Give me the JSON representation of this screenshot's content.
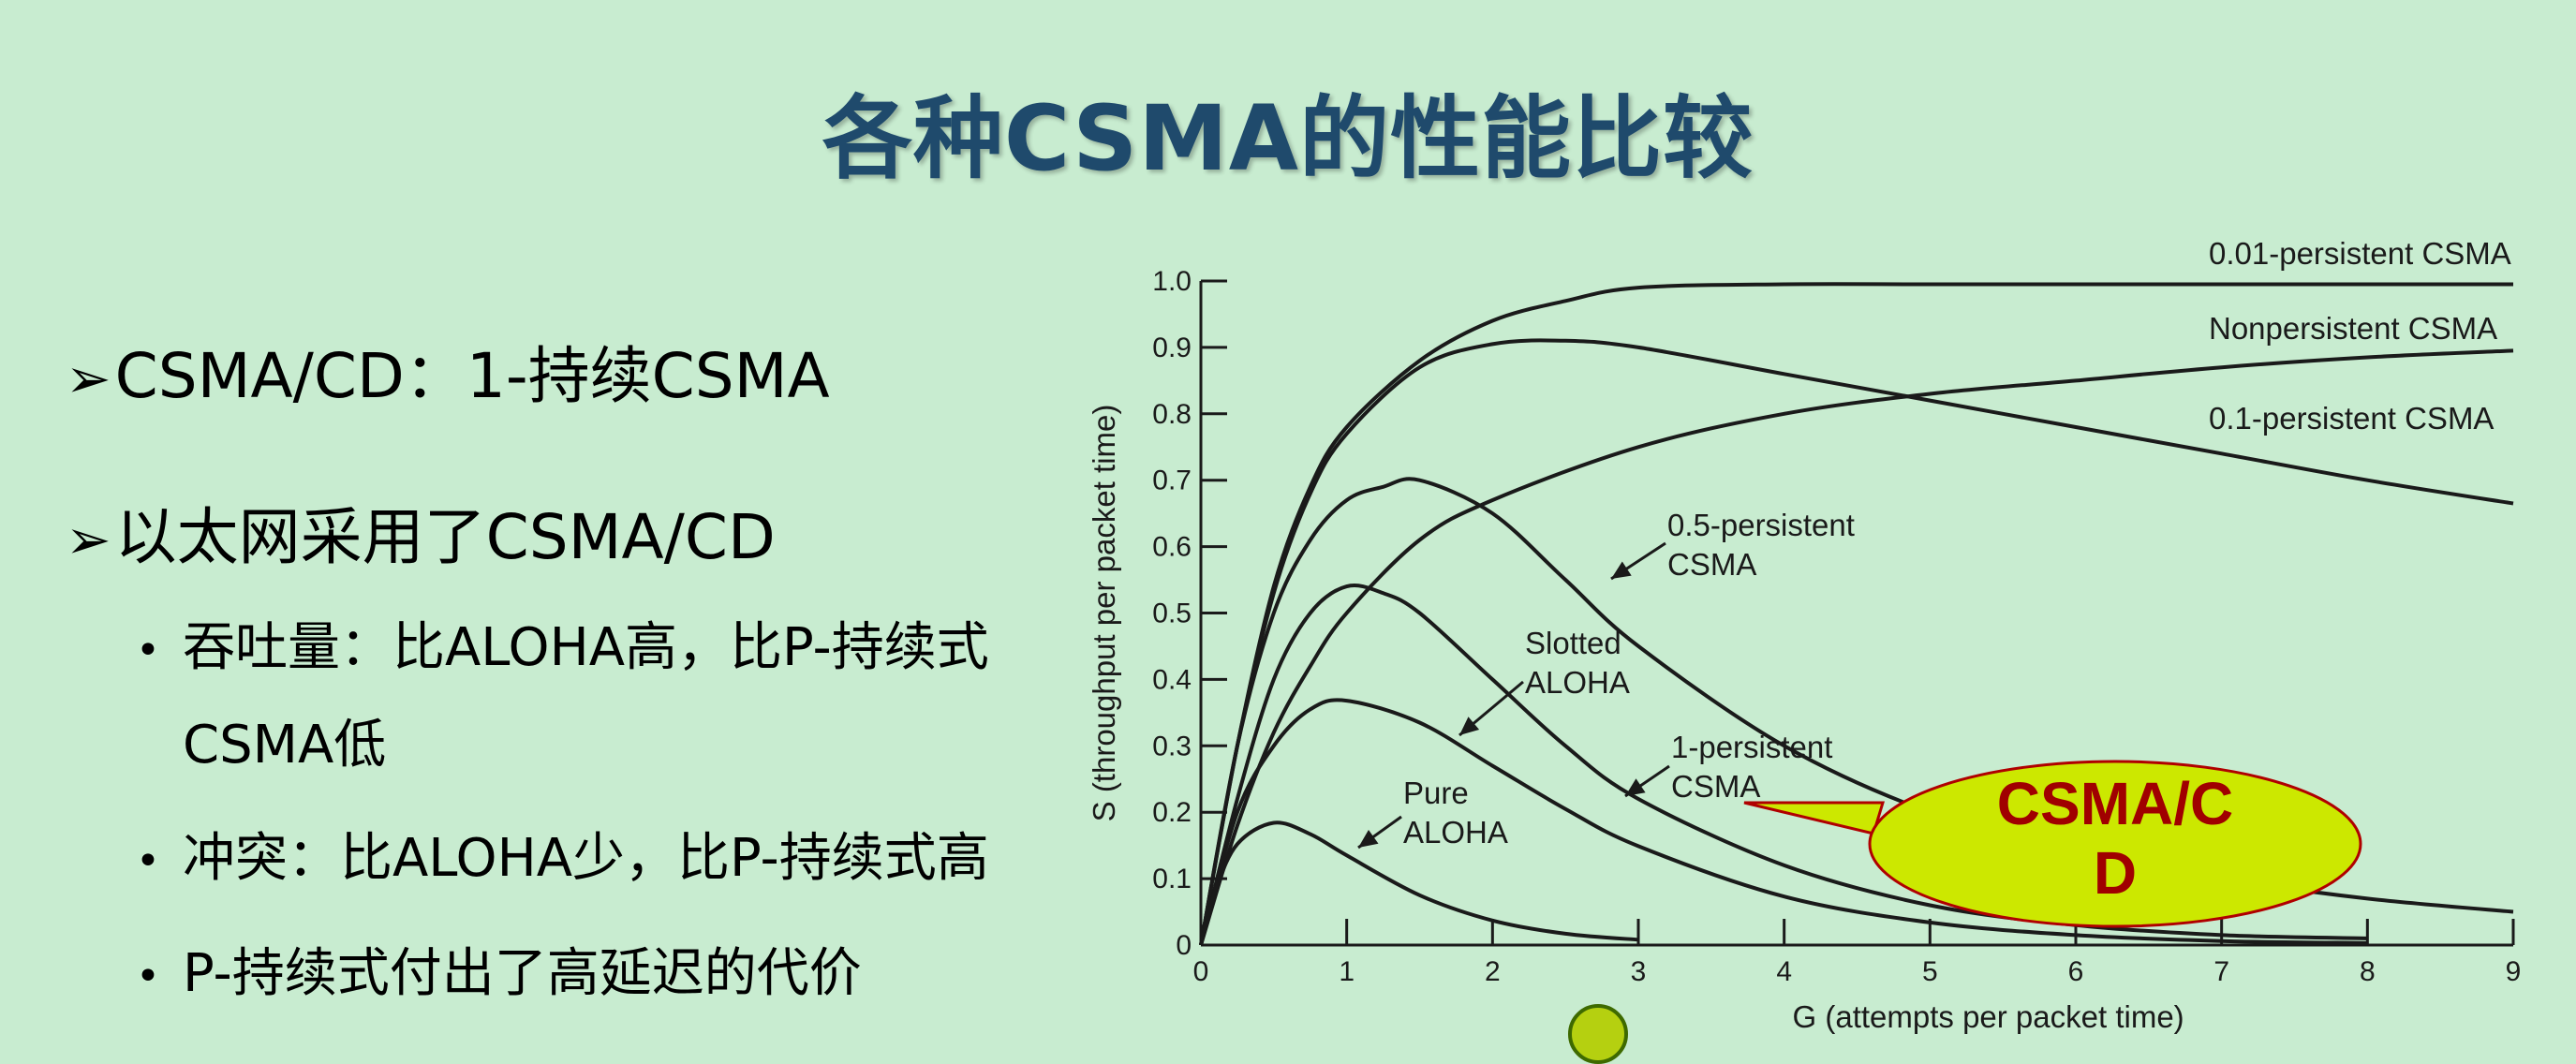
{
  "slide": {
    "title": "各种CSMA的性能比较",
    "bullets": [
      {
        "level": 1,
        "text": "CSMA/CD：1-持续CSMA"
      },
      {
        "level": 1,
        "text": "以太网采用了CSMA/CD"
      }
    ],
    "sub_bullets": [
      {
        "lines": [
          "吞吐量：比ALOHA高，比P-持续式",
          "CSMA低"
        ]
      },
      {
        "lines": [
          "冲突：比ALOHA少，比P-持续式高"
        ]
      },
      {
        "lines": [
          "P-持续式付出了高延迟的代价"
        ]
      }
    ],
    "callout": {
      "text_line1": "CSMA/C",
      "text_line2": "D",
      "fill": "#cce800",
      "text_color": "#a00000"
    }
  },
  "chart_data": {
    "type": "line",
    "xlabel": "G (attempts per packet time)",
    "ylabel": "S (throughput per packet time)",
    "xlim": [
      0,
      9
    ],
    "ylim": [
      0,
      1.0
    ],
    "x_ticks": [
      "0",
      "1",
      "2",
      "3",
      "4",
      "5",
      "6",
      "7",
      "8",
      "9"
    ],
    "y_ticks": [
      "0",
      "0.1",
      "0.2",
      "0.3",
      "0.4",
      "0.5",
      "0.6",
      "0.7",
      "0.8",
      "0.9",
      "1.0"
    ],
    "series": [
      {
        "name": "0.01-persistent CSMA",
        "x": [
          0,
          0.25,
          0.5,
          0.75,
          1,
          1.5,
          2,
          2.5,
          3,
          4,
          5,
          6,
          7,
          8,
          9
        ],
        "y": [
          0,
          0.3,
          0.54,
          0.69,
          0.78,
          0.88,
          0.94,
          0.97,
          0.99,
          0.995,
          0.995,
          0.995,
          0.995,
          0.995,
          0.995
        ]
      },
      {
        "name": "Nonpersistent CSMA",
        "x": [
          0,
          0.25,
          0.5,
          0.75,
          1,
          1.5,
          2,
          3,
          4,
          5,
          6,
          7,
          8,
          9
        ],
        "y": [
          0,
          0.18,
          0.32,
          0.42,
          0.5,
          0.61,
          0.67,
          0.75,
          0.8,
          0.83,
          0.85,
          0.87,
          0.885,
          0.895
        ]
      },
      {
        "name": "0.1-persistent CSMA",
        "x": [
          0,
          0.25,
          0.5,
          0.75,
          1,
          1.5,
          2,
          2.5,
          3,
          4,
          5,
          6,
          7,
          8,
          9
        ],
        "y": [
          0,
          0.3,
          0.53,
          0.68,
          0.77,
          0.87,
          0.905,
          0.91,
          0.9,
          0.86,
          0.82,
          0.78,
          0.74,
          0.7,
          0.665
        ]
      },
      {
        "name": "0.5-persistent CSMA",
        "x": [
          0,
          0.25,
          0.5,
          0.75,
          1,
          1.25,
          1.5,
          2,
          2.5,
          3,
          4,
          5,
          6,
          7,
          8,
          9
        ],
        "y": [
          0,
          0.3,
          0.5,
          0.61,
          0.67,
          0.69,
          0.7,
          0.65,
          0.55,
          0.45,
          0.3,
          0.2,
          0.14,
          0.1,
          0.07,
          0.05
        ]
      },
      {
        "name": "1-persistent CSMA",
        "x": [
          0,
          0.25,
          0.5,
          0.75,
          1,
          1.25,
          1.5,
          2,
          2.5,
          3,
          4,
          5,
          6,
          7,
          8
        ],
        "y": [
          0,
          0.22,
          0.4,
          0.5,
          0.54,
          0.53,
          0.5,
          0.4,
          0.3,
          0.22,
          0.12,
          0.06,
          0.03,
          0.015,
          0.01
        ]
      },
      {
        "name": "Slotted ALOHA",
        "x": [
          0,
          0.25,
          0.5,
          0.75,
          1,
          1.5,
          2,
          2.5,
          3,
          4,
          5,
          6,
          7,
          8
        ],
        "y": [
          0,
          0.2,
          0.3,
          0.355,
          0.368,
          0.335,
          0.27,
          0.205,
          0.149,
          0.073,
          0.034,
          0.015,
          0.006,
          0.003
        ]
      },
      {
        "name": "Pure ALOHA",
        "x": [
          0,
          0.1,
          0.25,
          0.5,
          0.75,
          1,
          1.5,
          2,
          2.5,
          3
        ],
        "y": [
          0,
          0.082,
          0.152,
          0.184,
          0.167,
          0.135,
          0.075,
          0.037,
          0.017,
          0.008
        ]
      }
    ],
    "labels": [
      {
        "lines": [
          "0.01-persistent CSMA"
        ]
      },
      {
        "lines": [
          "Nonpersistent CSMA"
        ]
      },
      {
        "lines": [
          "0.1-persistent CSMA"
        ]
      },
      {
        "lines": [
          "0.5-persistent",
          "CSMA"
        ]
      },
      {
        "lines": [
          "Slotted",
          "ALOHA"
        ]
      },
      {
        "lines": [
          "1-persistent",
          "CSMA"
        ]
      },
      {
        "lines": [
          "Pure",
          "ALOHA"
        ]
      }
    ],
    "grid": false,
    "legend": "none",
    "line_color": "#1a1a1a"
  }
}
